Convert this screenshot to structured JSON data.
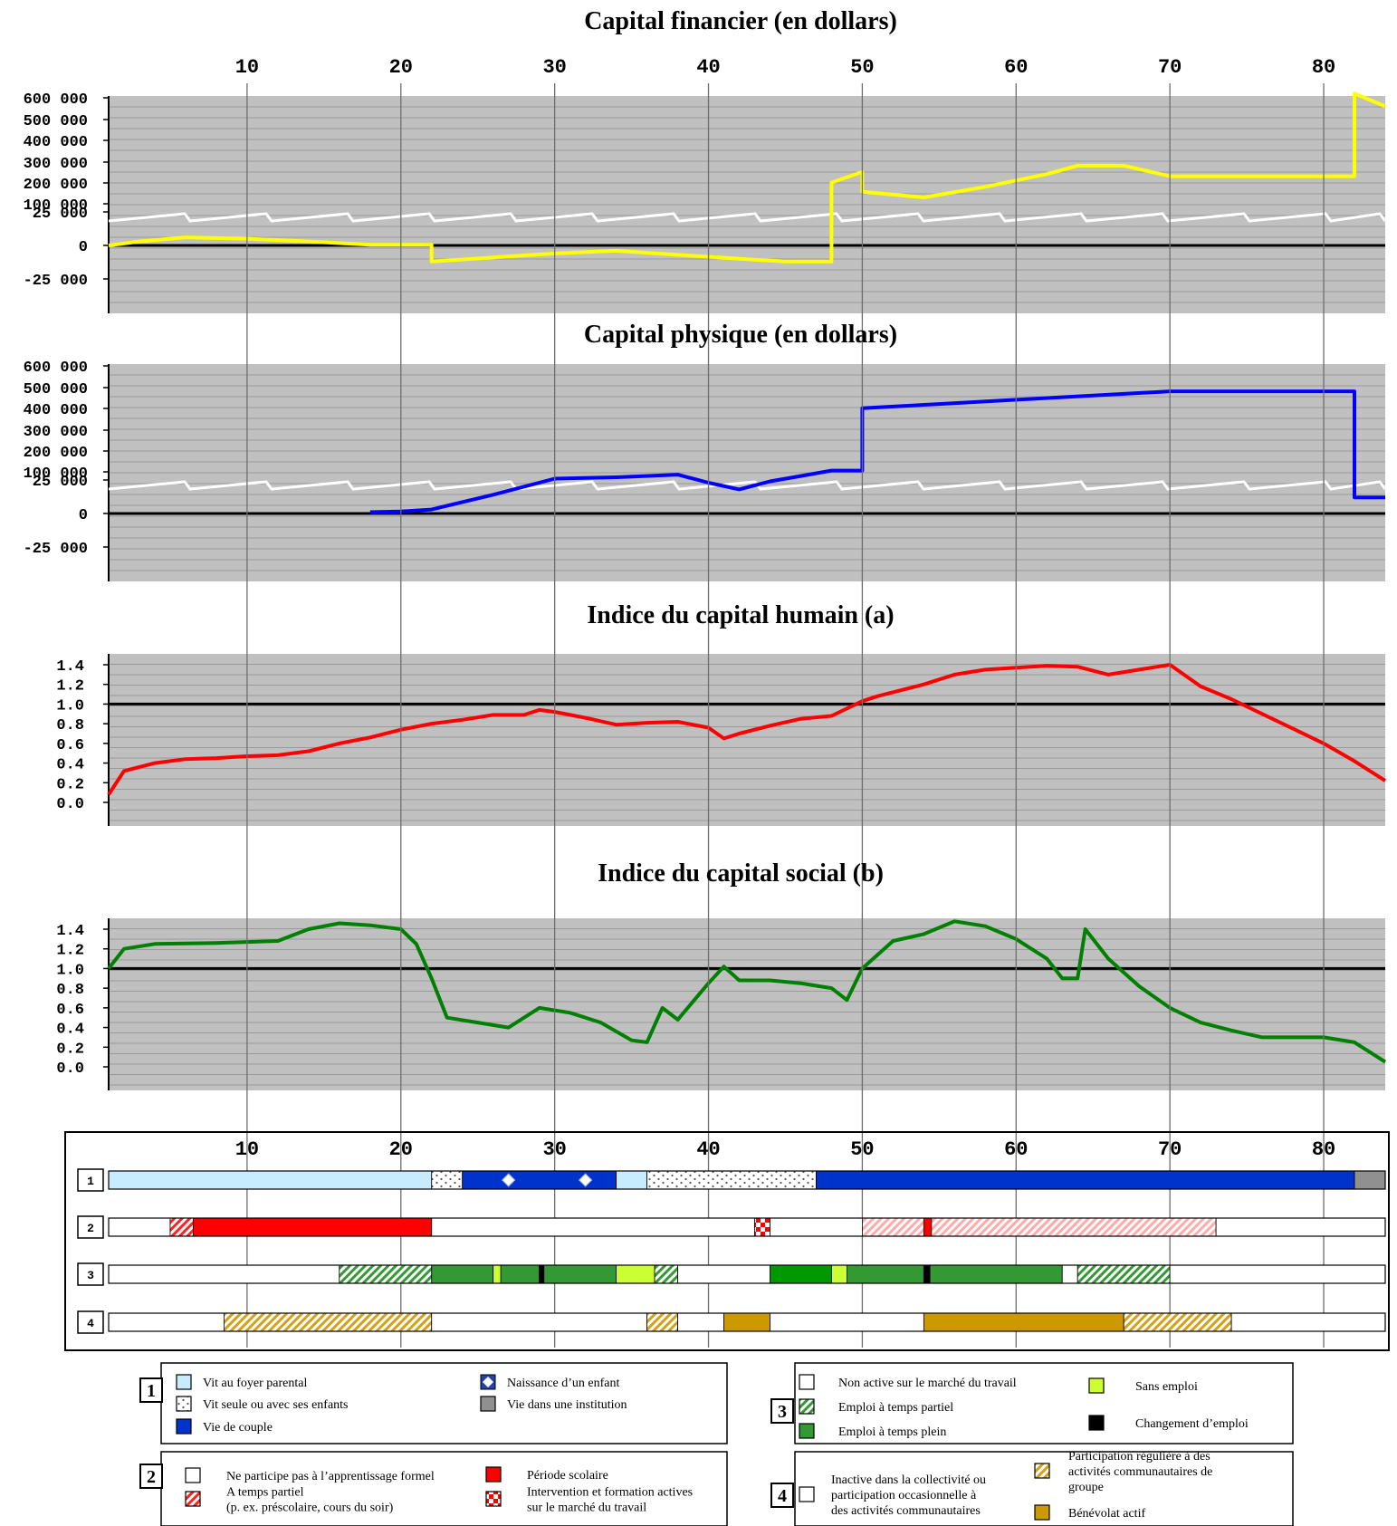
{
  "chart_data": [
    {
      "type": "line",
      "title": "Capital financier (en dollars)",
      "xlim": [
        1,
        84
      ],
      "x_ticks": [
        "10",
        "20",
        "30",
        "40",
        "50",
        "60",
        "70",
        "80"
      ],
      "y_ticks": [
        "600 000",
        "500 000",
        "400 000",
        "300 000",
        "200 000",
        "100 000",
        "25 000",
        "0",
        "-25 000"
      ],
      "axis_break": "between 100 000 and 25 000",
      "color": "#ffff00",
      "series": [
        {
          "x": [
            1,
            3,
            6,
            10,
            14,
            18,
            22,
            22,
            26,
            30,
            34,
            38,
            42,
            45,
            48,
            48,
            50,
            50,
            54,
            58,
            62,
            64,
            67,
            70,
            74,
            78,
            82,
            82,
            84
          ],
          "y": [
            0,
            3000,
            6000,
            5000,
            3000,
            500,
            500,
            -12000,
            -9000,
            -6000,
            -4000,
            -7000,
            -10000,
            -12000,
            -12000,
            200000,
            250000,
            80000,
            130000,
            180000,
            240000,
            280000,
            280000,
            230000,
            230000,
            230000,
            230000,
            620000,
            560000
          ]
        }
      ]
    },
    {
      "type": "line",
      "title": "Capital physique (en dollars)",
      "xlim": [
        1,
        84
      ],
      "x_ticks": [
        "10",
        "20",
        "30",
        "40",
        "50",
        "60",
        "70",
        "80"
      ],
      "y_ticks": [
        "600 000",
        "500 000",
        "400 000",
        "300 000",
        "200 000",
        "100 000",
        "25 000",
        "0",
        "-25 000"
      ],
      "axis_break": "between 100 000 and 25 000",
      "color": "#0000ff",
      "series": [
        {
          "x": [
            18,
            20,
            22,
            26,
            30,
            34,
            38,
            40,
            42,
            44,
            46,
            48,
            50,
            50,
            55,
            60,
            65,
            70,
            75,
            82,
            82,
            84
          ],
          "y": [
            1000,
            1500,
            3000,
            14000,
            26000,
            27000,
            29000,
            23000,
            18000,
            24000,
            28000,
            32000,
            32000,
            400000,
            420000,
            440000,
            460000,
            480000,
            480000,
            480000,
            12000,
            12000
          ]
        }
      ]
    },
    {
      "type": "line",
      "title": "Indice du capital humain (a)",
      "xlim": [
        1,
        84
      ],
      "ylim": [
        0,
        1.5
      ],
      "x_ticks": [
        "10",
        "20",
        "30",
        "40",
        "50",
        "60",
        "70",
        "80"
      ],
      "y_ticks": [
        "1.4",
        "1.2",
        "1.0",
        "0.8",
        "0.6",
        "0.4",
        "0.2",
        "0.0"
      ],
      "reference_line": 1.0,
      "color": "#ff0000",
      "series": [
        {
          "x": [
            1,
            2,
            4,
            6,
            8,
            10,
            12,
            14,
            16,
            18,
            20,
            22,
            24,
            26,
            28,
            29,
            30,
            32,
            34,
            36,
            38,
            40,
            41,
            42,
            44,
            46,
            48,
            50,
            51,
            54,
            56,
            58,
            60,
            62,
            64,
            66,
            68,
            70,
            72,
            74,
            76,
            78,
            80,
            82,
            84
          ],
          "y": [
            0.08,
            0.32,
            0.4,
            0.44,
            0.45,
            0.47,
            0.48,
            0.52,
            0.6,
            0.66,
            0.74,
            0.8,
            0.84,
            0.89,
            0.89,
            0.94,
            0.92,
            0.86,
            0.79,
            0.81,
            0.82,
            0.76,
            0.65,
            0.7,
            0.78,
            0.85,
            0.88,
            1.03,
            1.08,
            1.2,
            1.3,
            1.35,
            1.37,
            1.39,
            1.38,
            1.3,
            1.35,
            1.4,
            1.18,
            1.05,
            0.9,
            0.75,
            0.6,
            0.42,
            0.22
          ]
        }
      ]
    },
    {
      "type": "line",
      "title": "Indice du capital social (b)",
      "xlim": [
        1,
        84
      ],
      "ylim": [
        0,
        1.5
      ],
      "x_ticks": [
        "10",
        "20",
        "30",
        "40",
        "50",
        "60",
        "70",
        "80"
      ],
      "y_ticks": [
        "1.4",
        "1.2",
        "1.0",
        "0.8",
        "0.6",
        "0.4",
        "0.2",
        "0.0"
      ],
      "reference_line": 1.0,
      "color": "#008000",
      "series": [
        {
          "x": [
            1,
            2,
            4,
            8,
            12,
            14,
            16,
            18,
            20,
            21,
            22,
            23,
            25,
            27,
            29,
            31,
            33,
            35,
            36,
            37,
            38,
            40,
            41,
            42,
            44,
            46,
            48,
            49,
            50,
            52,
            54,
            56,
            58,
            60,
            62,
            63,
            64,
            64.5,
            66,
            68,
            70,
            72,
            74,
            76,
            80,
            82,
            84
          ],
          "y": [
            1.0,
            1.2,
            1.25,
            1.26,
            1.28,
            1.4,
            1.46,
            1.44,
            1.4,
            1.25,
            0.9,
            0.5,
            0.45,
            0.4,
            0.6,
            0.55,
            0.45,
            0.27,
            0.25,
            0.6,
            0.48,
            0.85,
            1.02,
            0.88,
            0.88,
            0.85,
            0.8,
            0.68,
            1.0,
            1.28,
            1.35,
            1.48,
            1.43,
            1.3,
            1.1,
            0.9,
            0.9,
            1.4,
            1.1,
            0.82,
            0.6,
            0.45,
            0.37,
            0.3,
            0.3,
            0.25,
            0.05
          ]
        }
      ]
    }
  ],
  "timeline": {
    "x_ticks": [
      "10",
      "20",
      "30",
      "40",
      "50",
      "60",
      "70",
      "80"
    ],
    "rows": [
      {
        "label": "1",
        "segments": [
          {
            "from": 1,
            "to": 22,
            "kind": "light-blue"
          },
          {
            "from": 22,
            "to": 24,
            "kind": "dotted"
          },
          {
            "from": 24,
            "to": 34,
            "kind": "blue"
          },
          {
            "from": 34,
            "to": 36,
            "kind": "light-blue"
          },
          {
            "from": 36,
            "to": 47,
            "kind": "dotted"
          },
          {
            "from": 47,
            "to": 82,
            "kind": "blue"
          },
          {
            "from": 82,
            "to": 84,
            "kind": "grey"
          }
        ],
        "markers": [
          {
            "at": 27,
            "kind": "birth-icon"
          },
          {
            "at": 32,
            "kind": "birth-icon"
          }
        ]
      },
      {
        "label": "2",
        "segments": [
          {
            "from": 1,
            "to": 5,
            "kind": "white"
          },
          {
            "from": 5,
            "to": 6.5,
            "kind": "red-hatch"
          },
          {
            "from": 6.5,
            "to": 22,
            "kind": "red"
          },
          {
            "from": 22,
            "to": 43,
            "kind": "white"
          },
          {
            "from": 43,
            "to": 44,
            "kind": "red-check"
          },
          {
            "from": 44,
            "to": 50,
            "kind": "white"
          },
          {
            "from": 50,
            "to": 54,
            "kind": "red-hatch-light"
          },
          {
            "from": 54,
            "to": 54.5,
            "kind": "red"
          },
          {
            "from": 54.5,
            "to": 73,
            "kind": "red-hatch-light"
          },
          {
            "from": 73,
            "to": 84,
            "kind": "white"
          }
        ]
      },
      {
        "label": "3",
        "segments": [
          {
            "from": 1,
            "to": 16,
            "kind": "white"
          },
          {
            "from": 16,
            "to": 22,
            "kind": "green-hatch"
          },
          {
            "from": 22,
            "to": 26,
            "kind": "green"
          },
          {
            "from": 26,
            "to": 26.5,
            "kind": "lime"
          },
          {
            "from": 26.5,
            "to": 29,
            "kind": "green"
          },
          {
            "from": 29,
            "to": 29.3,
            "kind": "black"
          },
          {
            "from": 29.3,
            "to": 34,
            "kind": "green"
          },
          {
            "from": 34,
            "to": 36.5,
            "kind": "lime"
          },
          {
            "from": 36.5,
            "to": 38,
            "kind": "green-hatch"
          },
          {
            "from": 38,
            "to": 44,
            "kind": "white"
          },
          {
            "from": 44,
            "to": 48,
            "kind": "bright-green"
          },
          {
            "from": 48,
            "to": 49,
            "kind": "lime"
          },
          {
            "from": 49,
            "to": 54,
            "kind": "green"
          },
          {
            "from": 54,
            "to": 54.4,
            "kind": "black"
          },
          {
            "from": 54.4,
            "to": 63,
            "kind": "green"
          },
          {
            "from": 63,
            "to": 64,
            "kind": "white"
          },
          {
            "from": 64,
            "to": 70,
            "kind": "green-hatch"
          },
          {
            "from": 70,
            "to": 84,
            "kind": "white"
          }
        ]
      },
      {
        "label": "4",
        "segments": [
          {
            "from": 1,
            "to": 8.5,
            "kind": "white"
          },
          {
            "from": 8.5,
            "to": 22,
            "kind": "gold-hatch"
          },
          {
            "from": 22,
            "to": 36,
            "kind": "white"
          },
          {
            "from": 36,
            "to": 38,
            "kind": "gold-hatch"
          },
          {
            "from": 38,
            "to": 41,
            "kind": "white"
          },
          {
            "from": 41,
            "to": 44,
            "kind": "gold"
          },
          {
            "from": 44,
            "to": 54,
            "kind": "white"
          },
          {
            "from": 54,
            "to": 67,
            "kind": "gold"
          },
          {
            "from": 67,
            "to": 74,
            "kind": "gold-hatch"
          },
          {
            "from": 74,
            "to": 84,
            "kind": "white"
          }
        ]
      }
    ]
  },
  "legends": [
    {
      "number": "1",
      "items": [
        {
          "text": "Vit au foyer parental",
          "swatch": "light-blue"
        },
        {
          "text": "Naissance d’un enfant",
          "swatch": "birth-icon"
        },
        {
          "text": "Vit seule ou avec ses enfants",
          "swatch": "dotted"
        },
        {
          "text": "Vie dans une institution",
          "swatch": "grey"
        },
        {
          "text": "Vie de couple",
          "swatch": "blue"
        }
      ]
    },
    {
      "number": "3",
      "items": [
        {
          "text": "Non active sur le marché du travail",
          "swatch": "white"
        },
        {
          "text": "Sans emploi",
          "swatch": "lime"
        },
        {
          "text": "Emploi à temps partiel",
          "swatch": "green-hatch"
        },
        {
          "text": "Emploi à temps plein",
          "swatch": "green"
        },
        {
          "text": "Changement d’emploi",
          "swatch": "black"
        }
      ]
    },
    {
      "number": "2",
      "items": [
        {
          "text": "Ne participe pas à l’apprentissage formel",
          "swatch": "white"
        },
        {
          "text": "Période scolaire",
          "swatch": "red"
        },
        {
          "text": "A temps partiel|(p. ex. préscolaire, cours du soir)",
          "swatch": "red-hatch"
        },
        {
          "text": "Intervention et formation actives|sur le marché du travail",
          "swatch": "red-check"
        }
      ]
    },
    {
      "number": "4",
      "items": [
        {
          "text": "Inactive dans la collectivité ou|participation occasionnelle à|des activités communautaires",
          "swatch": "white"
        },
        {
          "text": "Participation régulière à des|activités communautaires de|groupe",
          "swatch": "gold-hatch"
        },
        {
          "text": "Bénévolat actif",
          "swatch": "gold"
        }
      ]
    }
  ],
  "colors": {
    "panel_bg": "#c0c0c0",
    "light_blue": "#c8ecff",
    "blue": "#0033cc",
    "grey": "#909090",
    "red": "#ff0000",
    "green": "#339933",
    "bright_green": "#009900",
    "lime": "#ccff33",
    "gold": "#cc9900"
  }
}
